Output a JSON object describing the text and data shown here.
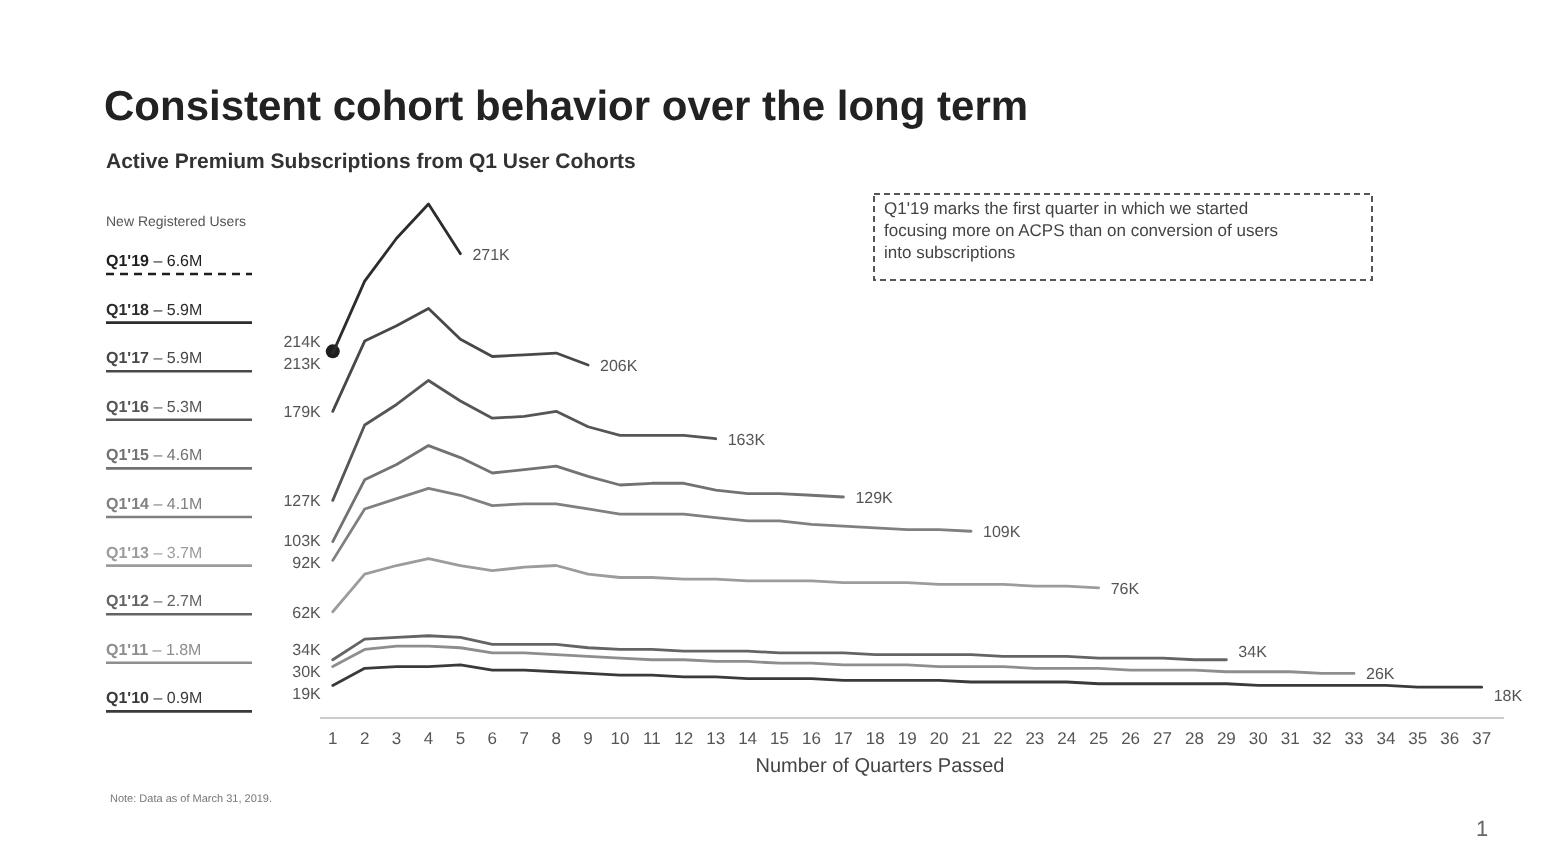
{
  "chart_data": {
    "type": "line",
    "title": "Consistent cohort behavior over the long term",
    "subtitle": "Active Premium Subscriptions from Q1 User Cohorts",
    "xlabel": "Number of Quarters Passed",
    "legend_title": "New Registered Users",
    "legend": "left",
    "tick_labels": "x",
    "grid": false,
    "xlim": [
      0.6,
      37.7
    ],
    "xticks": [
      1,
      2,
      3,
      4,
      5,
      6,
      7,
      8,
      9,
      10,
      11,
      12,
      13,
      14,
      15,
      16,
      17,
      18,
      19,
      20,
      21,
      22,
      23,
      24,
      25,
      26,
      27,
      28,
      29,
      30,
      31,
      32,
      33,
      34,
      35,
      36,
      37
    ],
    "series": [
      {
        "name": "Q1'19 – 6.6M",
        "color": "#1e1e1e",
        "marker": "circle",
        "line_style": "dashed",
        "x": [
          1
        ],
        "values": [
          214
        ],
        "value_labels": [
          "214K"
        ]
      },
      {
        "name": "Q1'18 – 5.9M",
        "color": "#2c2c2c",
        "x": [
          1,
          2,
          3,
          4,
          5
        ],
        "values": [
          213,
          255,
          280,
          300,
          271
        ],
        "value_labels": [
          "213K",
          null,
          null,
          null,
          "271K"
        ]
      },
      {
        "name": "Q1'17 – 5.9M",
        "color": "#484848",
        "x": [
          1,
          2,
          3,
          4,
          5,
          6,
          7,
          8,
          9
        ],
        "values": [
          179,
          220,
          229,
          239,
          221,
          211,
          212,
          213,
          206
        ],
        "value_labels": [
          "179K",
          null,
          null,
          null,
          null,
          null,
          null,
          null,
          "206K"
        ]
      },
      {
        "name": "Q1'16 – 5.3M",
        "color": "#565656",
        "x": [
          1,
          2,
          3,
          4,
          5,
          6,
          7,
          8,
          9,
          10,
          11,
          12,
          13
        ],
        "values": [
          127,
          171,
          183,
          197,
          185,
          175,
          176,
          179,
          170,
          165,
          165,
          165,
          163
        ],
        "value_labels": [
          "127K",
          null,
          null,
          null,
          null,
          null,
          null,
          null,
          null,
          null,
          null,
          null,
          "163K"
        ]
      },
      {
        "name": "Q1'15 – 4.6M",
        "color": "#727272",
        "x": [
          1,
          2,
          3,
          4,
          5,
          6,
          7,
          8,
          9,
          10,
          11,
          12,
          13,
          14,
          15,
          16,
          17
        ],
        "values": [
          103,
          139,
          148,
          159,
          152,
          143,
          145,
          147,
          141,
          136,
          137,
          137,
          133,
          131,
          131,
          130,
          129
        ],
        "value_labels": [
          "103K",
          null,
          null,
          null,
          null,
          null,
          null,
          null,
          null,
          null,
          null,
          null,
          null,
          null,
          null,
          null,
          "129K"
        ]
      },
      {
        "name": "Q1'14 – 4.1M",
        "color": "#808080",
        "x": [
          1,
          2,
          3,
          4,
          5,
          6,
          7,
          8,
          9,
          10,
          11,
          12,
          13,
          14,
          15,
          16,
          17,
          18,
          19,
          20,
          21
        ],
        "values": [
          92,
          122,
          128,
          134,
          130,
          124,
          125,
          125,
          122,
          119,
          119,
          119,
          117,
          115,
          115,
          113,
          112,
          111,
          110,
          110,
          109
        ],
        "value_labels": [
          "92K",
          null,
          null,
          null,
          null,
          null,
          null,
          null,
          null,
          null,
          null,
          null,
          null,
          null,
          null,
          null,
          null,
          null,
          null,
          null,
          "109K"
        ]
      },
      {
        "name": "Q1'13 – 3.7M",
        "color": "#9c9c9c",
        "x": [
          1,
          2,
          3,
          4,
          5,
          6,
          7,
          8,
          9,
          10,
          11,
          12,
          13,
          14,
          15,
          16,
          17,
          18,
          19,
          20,
          21,
          22,
          23,
          24,
          25
        ],
        "values": [
          62,
          84,
          89,
          93,
          89,
          86,
          88,
          89,
          84,
          82,
          82,
          81,
          81,
          80,
          80,
          80,
          79,
          79,
          79,
          78,
          78,
          78,
          77,
          77,
          76
        ],
        "value_labels": [
          "62K",
          null,
          null,
          null,
          null,
          null,
          null,
          null,
          null,
          null,
          null,
          null,
          null,
          null,
          null,
          null,
          null,
          null,
          null,
          null,
          null,
          null,
          null,
          null,
          "76K"
        ]
      },
      {
        "name": "Q1'12 – 2.7M",
        "color": "#646464",
        "x": [
          1,
          2,
          3,
          4,
          5,
          6,
          7,
          8,
          9,
          10,
          11,
          12,
          13,
          14,
          15,
          16,
          17,
          18,
          19,
          20,
          21,
          22,
          23,
          24,
          25,
          26,
          27,
          28,
          29
        ],
        "values": [
          34,
          46,
          47,
          48,
          47,
          43,
          43,
          43,
          41,
          40,
          40,
          39,
          39,
          39,
          38,
          38,
          38,
          37,
          37,
          37,
          37,
          36,
          36,
          36,
          35,
          35,
          35,
          34,
          34
        ],
        "value_labels": [
          "34K",
          null,
          null,
          null,
          null,
          null,
          null,
          null,
          null,
          null,
          null,
          null,
          null,
          null,
          null,
          null,
          null,
          null,
          null,
          null,
          null,
          null,
          null,
          null,
          null,
          null,
          null,
          null,
          "34K"
        ]
      },
      {
        "name": "Q1'11 – 1.8M",
        "color": "#8e8e8e",
        "x": [
          1,
          2,
          3,
          4,
          5,
          6,
          7,
          8,
          9,
          10,
          11,
          12,
          13,
          14,
          15,
          16,
          17,
          18,
          19,
          20,
          21,
          22,
          23,
          24,
          25,
          26,
          27,
          28,
          29,
          30,
          31,
          32,
          33
        ],
        "values": [
          30,
          40,
          42,
          42,
          41,
          38,
          38,
          37,
          36,
          35,
          34,
          34,
          33,
          33,
          32,
          32,
          31,
          31,
          31,
          30,
          30,
          30,
          29,
          29,
          29,
          28,
          28,
          28,
          27,
          27,
          27,
          26,
          26
        ],
        "value_labels": [
          "30K",
          null,
          null,
          null,
          null,
          null,
          null,
          null,
          null,
          null,
          null,
          null,
          null,
          null,
          null,
          null,
          null,
          null,
          null,
          null,
          null,
          null,
          null,
          null,
          null,
          null,
          null,
          null,
          null,
          null,
          null,
          null,
          "26K"
        ]
      },
      {
        "name": "Q1'10 – 0.9M",
        "color": "#3a3a3a",
        "x": [
          1,
          2,
          3,
          4,
          5,
          6,
          7,
          8,
          9,
          10,
          11,
          12,
          13,
          14,
          15,
          16,
          17,
          18,
          19,
          20,
          21,
          22,
          23,
          24,
          25,
          26,
          27,
          28,
          29,
          30,
          31,
          32,
          33,
          34,
          35,
          36,
          37
        ],
        "values": [
          19,
          29,
          30,
          30,
          31,
          28,
          28,
          27,
          26,
          25,
          25,
          24,
          24,
          23,
          23,
          23,
          22,
          22,
          22,
          22,
          21,
          21,
          21,
          21,
          20,
          20,
          20,
          20,
          20,
          19,
          19,
          19,
          19,
          19,
          18,
          18,
          18
        ],
        "value_labels": [
          "19K",
          null,
          null,
          null,
          null,
          null,
          null,
          null,
          null,
          null,
          null,
          null,
          null,
          null,
          null,
          null,
          null,
          null,
          null,
          null,
          null,
          null,
          null,
          null,
          null,
          null,
          null,
          null,
          null,
          null,
          null,
          null,
          null,
          null,
          null,
          null,
          "18K"
        ]
      }
    ],
    "annotations": [
      "Q1'19 marks the first quarter in which we started focusing more on ACPS than on conversion of users into subscriptions",
      "Note: Data as of March 31, 2019.",
      "1"
    ]
  }
}
